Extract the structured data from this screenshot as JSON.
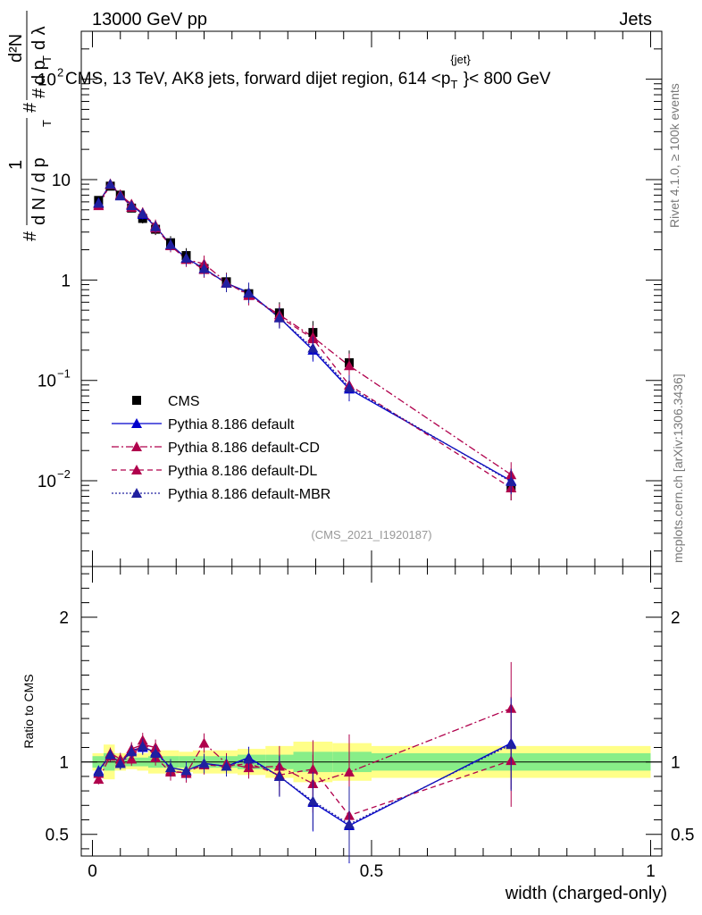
{
  "header": {
    "left": "13000 GeV pp",
    "right": "Jets"
  },
  "side_labels": {
    "rivet": "Rivet 4.1.0, ≥ 100k events",
    "mcplots": "mcplots.cern.ch [arXiv:1306.3436]"
  },
  "chart_data": [
    {
      "type": "scatter",
      "panel": "main",
      "title": "CMS, 13 TeV, AK8 jets, forward dijet region, 614 <p_T^{jet}< 800 GeV",
      "title_parts": {
        "main": "CMS, 13 TeV, AK8 jets, forward dijet region, 614 <p",
        "sub": "T",
        "sup": "{jet}",
        "end": "}< 800 GeV"
      },
      "ylabel": "1/dN/dp_T # d²N/dp_T dλ",
      "ylabel_parts": {
        "frac1_num": "1",
        "frac1_den": "d N / d p",
        "frac2_num": "d²N",
        "frac2_den": "d p",
        "frac2_den2": "d λ",
        "sub": "T",
        "hash": "#"
      },
      "yscale": "log",
      "ylim": [
        0.0014,
        300
      ],
      "xlim": [
        -0.02,
        1.02
      ],
      "y_ticks": [
        {
          "value": 0.01,
          "base": "10",
          "exp": "−2"
        },
        {
          "value": 0.1,
          "base": "10",
          "exp": "−1"
        },
        {
          "value": 1,
          "label": "1"
        },
        {
          "value": 10,
          "label": "10"
        },
        {
          "value": 100,
          "base": "10",
          "exp": "2"
        }
      ],
      "x_ticks": [
        {
          "value": 0,
          "label": "0"
        },
        {
          "value": 0.5,
          "label": "0.5"
        },
        {
          "value": 1,
          "label": "1"
        }
      ],
      "x": [
        0.011,
        0.032,
        0.05,
        0.07,
        0.09,
        0.113,
        0.14,
        0.168,
        0.2,
        0.24,
        0.28,
        0.335,
        0.395,
        0.46,
        0.75
      ],
      "series": [
        {
          "name": "CMS",
          "marker": "square",
          "color": "#000000",
          "line": "none",
          "values": [
            6.2,
            8.6,
            7.0,
            5.2,
            4.1,
            3.2,
            2.35,
            1.75,
            1.3,
            0.96,
            0.73,
            0.47,
            0.3,
            0.15,
            0.0085
          ]
        },
        {
          "name": "Pythia 8.186 default",
          "marker": "triangle",
          "color": "#0000cc",
          "line": "solid",
          "values": [
            5.9,
            9.0,
            6.9,
            5.6,
            4.5,
            3.4,
            2.25,
            1.65,
            1.3,
            0.93,
            0.75,
            0.42,
            0.2,
            0.082,
            0.01
          ]
        },
        {
          "name": "Pythia 8.186 default-CD",
          "marker": "triangle",
          "color": "#b0004c",
          "line": "dashdot",
          "values": [
            5.5,
            8.9,
            7.0,
            5.7,
            4.6,
            3.5,
            2.2,
            1.6,
            1.45,
            0.95,
            0.7,
            0.45,
            0.27,
            0.14,
            0.0115
          ]
        },
        {
          "name": "Pythia 8.186 default-DL",
          "marker": "triangle",
          "color": "#b0004c",
          "line": "dashed",
          "values": [
            5.7,
            9.1,
            7.1,
            5.3,
            4.7,
            3.3,
            2.2,
            1.62,
            1.27,
            0.93,
            0.72,
            0.43,
            0.26,
            0.09,
            0.0085
          ]
        },
        {
          "name": "Pythia 8.186 default-MBR",
          "marker": "triangle",
          "color": "#2020a0",
          "line": "dotted",
          "values": [
            5.8,
            9.0,
            6.9,
            5.5,
            4.6,
            3.4,
            2.25,
            1.65,
            1.3,
            0.93,
            0.74,
            0.42,
            0.21,
            0.085,
            0.0098
          ]
        }
      ],
      "legend": [
        "CMS",
        "Pythia 8.186 default",
        "Pythia 8.186 default-CD",
        "Pythia 8.186 default-DL",
        "Pythia 8.186 default-MBR"
      ],
      "legend_position": "bottom-left",
      "annotation": "(CMS_2021_I1920187)"
    },
    {
      "type": "scatter",
      "panel": "ratio",
      "ylabel": "Ratio to CMS",
      "xlabel": "width (charged-only)",
      "ylim": [
        0.35,
        2.35
      ],
      "xlim": [
        -0.02,
        1.02
      ],
      "y_ticks": [
        {
          "value": 0.5,
          "label": "0.5"
        },
        {
          "value": 1,
          "label": "1"
        },
        {
          "value": 2,
          "label": "2"
        }
      ],
      "x_ticks": [
        {
          "value": 0,
          "label": "0"
        },
        {
          "value": 0.5,
          "label": "0.5"
        },
        {
          "value": 1,
          "label": "1"
        }
      ],
      "bands": [
        {
          "x0": 0.0,
          "x1": 0.02,
          "green": 0.04,
          "yellow": 0.06
        },
        {
          "x0": 0.02,
          "x1": 0.04,
          "green": 0.06,
          "yellow": 0.12
        },
        {
          "x0": 0.04,
          "x1": 0.06,
          "green": 0.03,
          "yellow": 0.06
        },
        {
          "x0": 0.06,
          "x1": 0.08,
          "green": 0.03,
          "yellow": 0.05
        },
        {
          "x0": 0.08,
          "x1": 0.1,
          "green": 0.03,
          "yellow": 0.06
        },
        {
          "x0": 0.1,
          "x1": 0.125,
          "green": 0.04,
          "yellow": 0.08
        },
        {
          "x0": 0.125,
          "x1": 0.155,
          "green": 0.04,
          "yellow": 0.08
        },
        {
          "x0": 0.155,
          "x1": 0.18,
          "green": 0.04,
          "yellow": 0.07
        },
        {
          "x0": 0.18,
          "x1": 0.22,
          "green": 0.04,
          "yellow": 0.08
        },
        {
          "x0": 0.22,
          "x1": 0.26,
          "green": 0.04,
          "yellow": 0.08
        },
        {
          "x0": 0.26,
          "x1": 0.31,
          "green": 0.05,
          "yellow": 0.09
        },
        {
          "x0": 0.31,
          "x1": 0.36,
          "green": 0.05,
          "yellow": 0.11
        },
        {
          "x0": 0.36,
          "x1": 0.43,
          "green": 0.07,
          "yellow": 0.14
        },
        {
          "x0": 0.43,
          "x1": 0.5,
          "green": 0.07,
          "yellow": 0.13
        },
        {
          "x0": 0.5,
          "x1": 1.0,
          "green": 0.06,
          "yellow": 0.11
        }
      ],
      "x": [
        0.011,
        0.032,
        0.05,
        0.07,
        0.09,
        0.113,
        0.14,
        0.168,
        0.2,
        0.24,
        0.28,
        0.335,
        0.395,
        0.46,
        0.75
      ],
      "series": [
        {
          "name": "Pythia 8.186 default",
          "color": "#0000cc",
          "line": "solid",
          "values": [
            0.94,
            1.05,
            0.99,
            1.08,
            1.1,
            1.07,
            0.96,
            0.94,
            0.99,
            0.97,
            1.03,
            0.9,
            0.72,
            0.56,
            1.13
          ]
        },
        {
          "name": "Pythia 8.186 default-CD",
          "color": "#b0004c",
          "line": "dashdot",
          "values": [
            0.88,
            1.04,
            1.0,
            1.09,
            1.12,
            1.1,
            0.94,
            0.92,
            1.13,
            0.99,
            0.96,
            0.97,
            0.85,
            0.93,
            1.37
          ]
        },
        {
          "name": "Pythia 8.186 default-DL",
          "color": "#b0004c",
          "line": "dashed",
          "values": [
            0.92,
            1.06,
            1.02,
            1.02,
            1.15,
            1.03,
            0.93,
            0.93,
            0.98,
            0.97,
            0.99,
            0.91,
            0.95,
            0.63,
            1.01
          ]
        },
        {
          "name": "Pythia 8.186 default-MBR",
          "color": "#2020a0",
          "line": "dotted",
          "values": [
            0.93,
            1.05,
            0.99,
            1.07,
            1.11,
            1.06,
            0.96,
            0.94,
            0.99,
            0.97,
            1.02,
            0.9,
            0.73,
            0.57,
            1.12
          ]
        }
      ]
    }
  ]
}
